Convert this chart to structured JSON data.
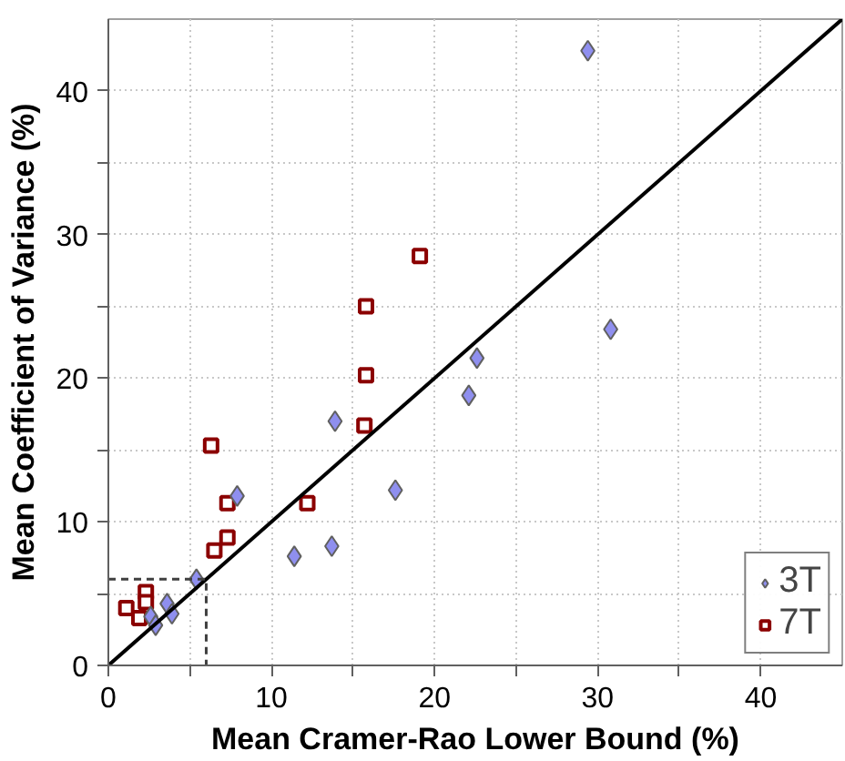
{
  "chart_data": {
    "type": "scatter",
    "xlabel": "Mean Cramer-Rao Lower Bound (%)",
    "ylabel": "Mean Coefficient of Variance (%)",
    "xlim": [
      0,
      45
    ],
    "ylim": [
      0,
      45
    ],
    "xticks": [
      0,
      {
        "value": 5,
        "label": null
      },
      10,
      {
        "value": 15,
        "label": null
      },
      20,
      {
        "value": 25,
        "label": null
      },
      30,
      {
        "value": 35,
        "label": null
      },
      40
    ],
    "yticks": [
      0,
      {
        "value": 5,
        "label": null
      },
      10,
      {
        "value": 15,
        "label": null
      },
      20,
      {
        "value": 25,
        "label": null
      },
      30,
      {
        "value": 35,
        "label": null
      },
      40
    ],
    "grid": true,
    "legend": "bottom right",
    "series": [
      {
        "name": "3T",
        "color": "#8f8fef",
        "marker": "diamond",
        "x": [
          29.4,
          30.8,
          22.6,
          22.1,
          13.9,
          17.6,
          7.9,
          11.4,
          13.7,
          5.4,
          3.6,
          3.9,
          2.6,
          2.9
        ],
        "values": [
          42.8,
          23.4,
          21.4,
          18.8,
          17.0,
          12.2,
          11.8,
          7.6,
          8.3,
          6.0,
          4.3,
          3.6,
          3.4,
          2.8
        ]
      },
      {
        "name": "7T",
        "color": "#8b0000",
        "marker": "square",
        "x": [
          19.1,
          15.8,
          15.8,
          15.7,
          6.3,
          7.3,
          12.2,
          7.3,
          6.5,
          2.3,
          2.3,
          1.1,
          1.9
        ],
        "values": [
          28.5,
          25.0,
          20.2,
          16.7,
          15.3,
          11.3,
          11.3,
          8.9,
          8.0,
          5.1,
          4.4,
          4.0,
          3.3
        ]
      },
      {
        "type": "line",
        "color": "#000000",
        "line_style": "solid",
        "x": [
          0,
          45
        ],
        "values": [
          0,
          45
        ]
      },
      {
        "type": "line",
        "color": "#404040",
        "line_style": "dashed",
        "x": [
          0,
          6,
          6
        ],
        "values": [
          6,
          6,
          0
        ]
      }
    ]
  }
}
